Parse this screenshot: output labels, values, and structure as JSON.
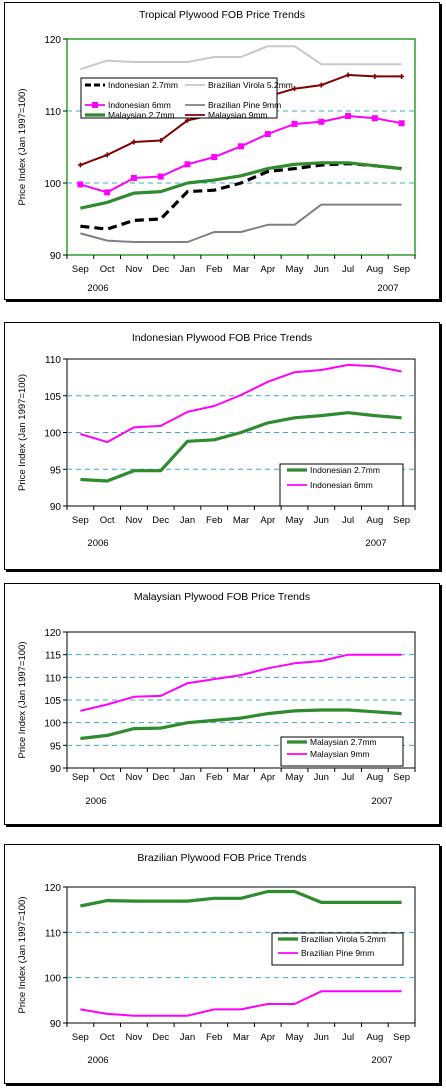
{
  "chart_data": [
    {
      "type": "line",
      "title": "Tropical Plywood FOB Price Trends",
      "ylabel": "Price Index (Jan 1997=100)",
      "categories": [
        "Sep",
        "Oct",
        "Nov",
        "Dec",
        "Jan",
        "Feb",
        "Mar",
        "Apr",
        "May",
        "Jun",
        "Jul",
        "Aug",
        "Sep"
      ],
      "year_labels": [
        "2006",
        "2007"
      ],
      "ylim": [
        90,
        120
      ],
      "yticks": [
        90,
        100,
        110,
        120
      ],
      "grid": "horizontal dashed",
      "legend_position": "top-left",
      "plot_background": "#ffffff",
      "plot_border": "#2e9e2e",
      "series": [
        {
          "name": "Indonesian 2.7mm",
          "color": "#000000",
          "style": "dashed",
          "values": [
            94,
            93.6,
            94.8,
            95,
            98.8,
            99,
            100,
            101.6,
            102,
            102.5,
            102.7,
            102.4,
            102
          ]
        },
        {
          "name": "Indonesian 6mm",
          "color": "#ff00ff",
          "marker": "square",
          "values": [
            99.8,
            98.7,
            100.7,
            100.9,
            102.6,
            103.6,
            105.1,
            106.8,
            108.2,
            108.5,
            109.3,
            109,
            108.3
          ]
        },
        {
          "name": "Brazilian Virola 5.2mm",
          "color": "#c8c8c8",
          "values": [
            115.8,
            117,
            116.8,
            116.8,
            116.8,
            117.5,
            117.5,
            119,
            119,
            116.5,
            116.5,
            116.5,
            116.5
          ]
        },
        {
          "name": "Brazilian Pine 9mm",
          "color": "#808080",
          "values": [
            93,
            92,
            91.8,
            91.8,
            91.8,
            93.2,
            93.2,
            94.2,
            94.2,
            97,
            97,
            97,
            97
          ]
        },
        {
          "name": "Malaysian 2.7mm",
          "color": "#2e8b2e",
          "values": [
            96.5,
            97.3,
            98.6,
            98.8,
            100,
            100.4,
            101,
            102,
            102.6,
            102.8,
            102.8,
            102.4,
            102
          ]
        },
        {
          "name": "Malaysian 9mm",
          "color": "#800000",
          "marker": "plus",
          "values": [
            102.5,
            103.9,
            105.7,
            105.9,
            108.7,
            109.5,
            110.4,
            112,
            113.1,
            113.6,
            115,
            114.8,
            114.8
          ]
        }
      ]
    },
    {
      "type": "line",
      "title": "Indonesian Plywood FOB Price Trends",
      "ylabel": "Price Index (Jan 1997=100)",
      "categories": [
        "Sep",
        "Oct",
        "Nov",
        "Dec",
        "Jan",
        "Feb",
        "Mar",
        "Apr",
        "May",
        "Jun",
        "Jul",
        "Aug",
        "Sep"
      ],
      "year_labels": [
        "2006",
        "2007"
      ],
      "ylim": [
        90,
        110
      ],
      "yticks": [
        90,
        95,
        100,
        105,
        110
      ],
      "grid": "horizontal dashed",
      "legend_position": "bottom-right",
      "plot_background": "#ffffff",
      "plot_border": "#000000",
      "series": [
        {
          "name": "Indonesian 2.7mm",
          "color": "#2e8b2e",
          "values": [
            93.6,
            93.4,
            94.8,
            94.8,
            98.8,
            99,
            100,
            101.3,
            102,
            102.3,
            102.7,
            102.3,
            102
          ]
        },
        {
          "name": "Indonesian 6mm",
          "color": "#ff00ff",
          "values": [
            99.8,
            98.7,
            100.7,
            100.9,
            102.8,
            103.6,
            105.1,
            106.9,
            108.2,
            108.5,
            109.2,
            109,
            108.3
          ]
        }
      ]
    },
    {
      "type": "line",
      "title": "Malaysian Plywood FOB Price Trends",
      "ylabel": "Price Index (Jan 1997=100)",
      "categories": [
        "Sep",
        "Oct",
        "Nov",
        "Dec",
        "Jan",
        "Feb",
        "Mar",
        "Apr",
        "May",
        "Jun",
        "Jul",
        "Aug",
        "Sep"
      ],
      "year_labels": [
        "2006",
        "2007"
      ],
      "ylim": [
        90,
        120
      ],
      "yticks": [
        90,
        95,
        100,
        105,
        110,
        115,
        120
      ],
      "grid": "horizontal dashed",
      "legend_position": "bottom-right",
      "plot_background": "#ffffff",
      "plot_border": "#000000",
      "series": [
        {
          "name": "Malaysian 2.7mm",
          "color": "#2e8b2e",
          "values": [
            96.5,
            97.2,
            98.7,
            98.8,
            100,
            100.5,
            101,
            102,
            102.6,
            102.8,
            102.8,
            102.4,
            102
          ]
        },
        {
          "name": "Malaysian 9mm",
          "color": "#ff00ff",
          "values": [
            102.6,
            104,
            105.7,
            105.9,
            108.7,
            109.6,
            110.5,
            112,
            113.1,
            113.6,
            115,
            115,
            115
          ]
        }
      ]
    },
    {
      "type": "line",
      "title": "Brazilian Plywood FOB Price Trends",
      "ylabel": "Price Index (Jan 1997=100)",
      "categories": [
        "Sep",
        "Oct",
        "Nov",
        "Dec",
        "Jan",
        "Feb",
        "Mar",
        "Apr",
        "May",
        "Jun",
        "Jul",
        "Aug",
        "Sep"
      ],
      "year_labels": [
        "2006",
        "2007"
      ],
      "ylim": [
        90,
        120
      ],
      "yticks": [
        90,
        100,
        110,
        120
      ],
      "grid": "horizontal dashed",
      "legend_position": "center-right",
      "plot_background": "#ffffff",
      "plot_border": "#000000",
      "series": [
        {
          "name": "Brazilian Virola 5.2mm",
          "color": "#2e8b2e",
          "values": [
            115.8,
            117,
            116.9,
            116.9,
            116.9,
            117.5,
            117.5,
            119,
            119,
            116.6,
            116.6,
            116.6,
            116.6
          ]
        },
        {
          "name": "Brazilian Pine 9mm",
          "color": "#ff00ff",
          "values": [
            93,
            92,
            91.6,
            91.6,
            91.6,
            93,
            93,
            94.2,
            94.2,
            97,
            97,
            97,
            97
          ]
        }
      ]
    }
  ]
}
